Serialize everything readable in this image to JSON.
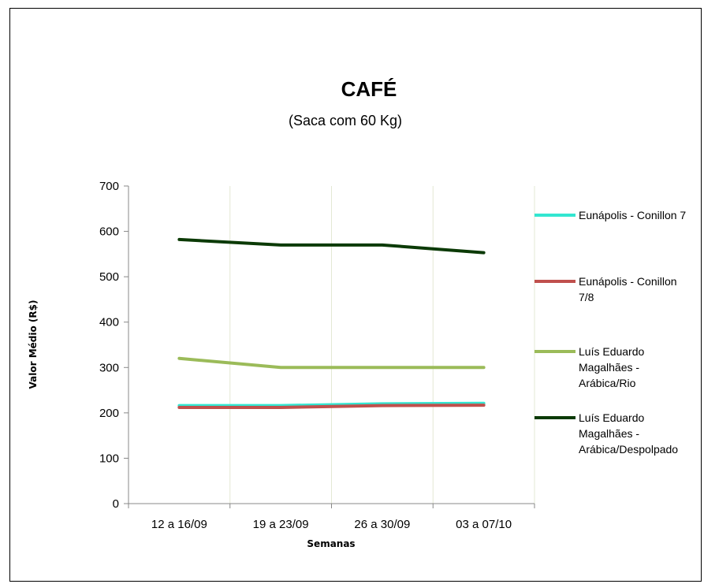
{
  "chart_data": {
    "type": "line",
    "title": "CAFÉ",
    "subtitle": "(Saca com 60 Kg)",
    "xlabel": "Semanas",
    "ylabel": "Valor Médio (R$)",
    "categories": [
      "12 a 16/09",
      "19 a 23/09",
      "26 a 30/09",
      "03 a 07/10"
    ],
    "ylim": [
      0,
      700
    ],
    "yticks": [
      0,
      100,
      200,
      300,
      400,
      500,
      600,
      700
    ],
    "grid": "vertical",
    "legend_position": "right",
    "series": [
      {
        "name": "Eunápolis - Conillon 7",
        "legend_lines": [
          "Eunápolis - Conillon 7"
        ],
        "color": "#33e6d1",
        "values": [
          216,
          216,
          220,
          221
        ]
      },
      {
        "name": "Eunápolis - Conillon 7/8",
        "legend_lines": [
          "Eunápolis - Conillon",
          "7/8"
        ],
        "color": "#c0504d",
        "values": [
          212,
          212,
          216,
          217
        ]
      },
      {
        "name": "Luís Eduardo Magalhães - Arábica/Rio",
        "legend_lines": [
          "Luís Eduardo",
          "Magalhães -",
          "Arábica/Rio"
        ],
        "color": "#9bbb59",
        "values": [
          320,
          300,
          300,
          300
        ]
      },
      {
        "name": "Luís Eduardo Magalhães - Arábica/Despolpado",
        "legend_lines": [
          "Luís Eduardo",
          "Magalhães -",
          "Arábica/Despolpado"
        ],
        "color": "#0b3a06",
        "values": [
          582,
          570,
          570,
          553
        ]
      }
    ]
  }
}
